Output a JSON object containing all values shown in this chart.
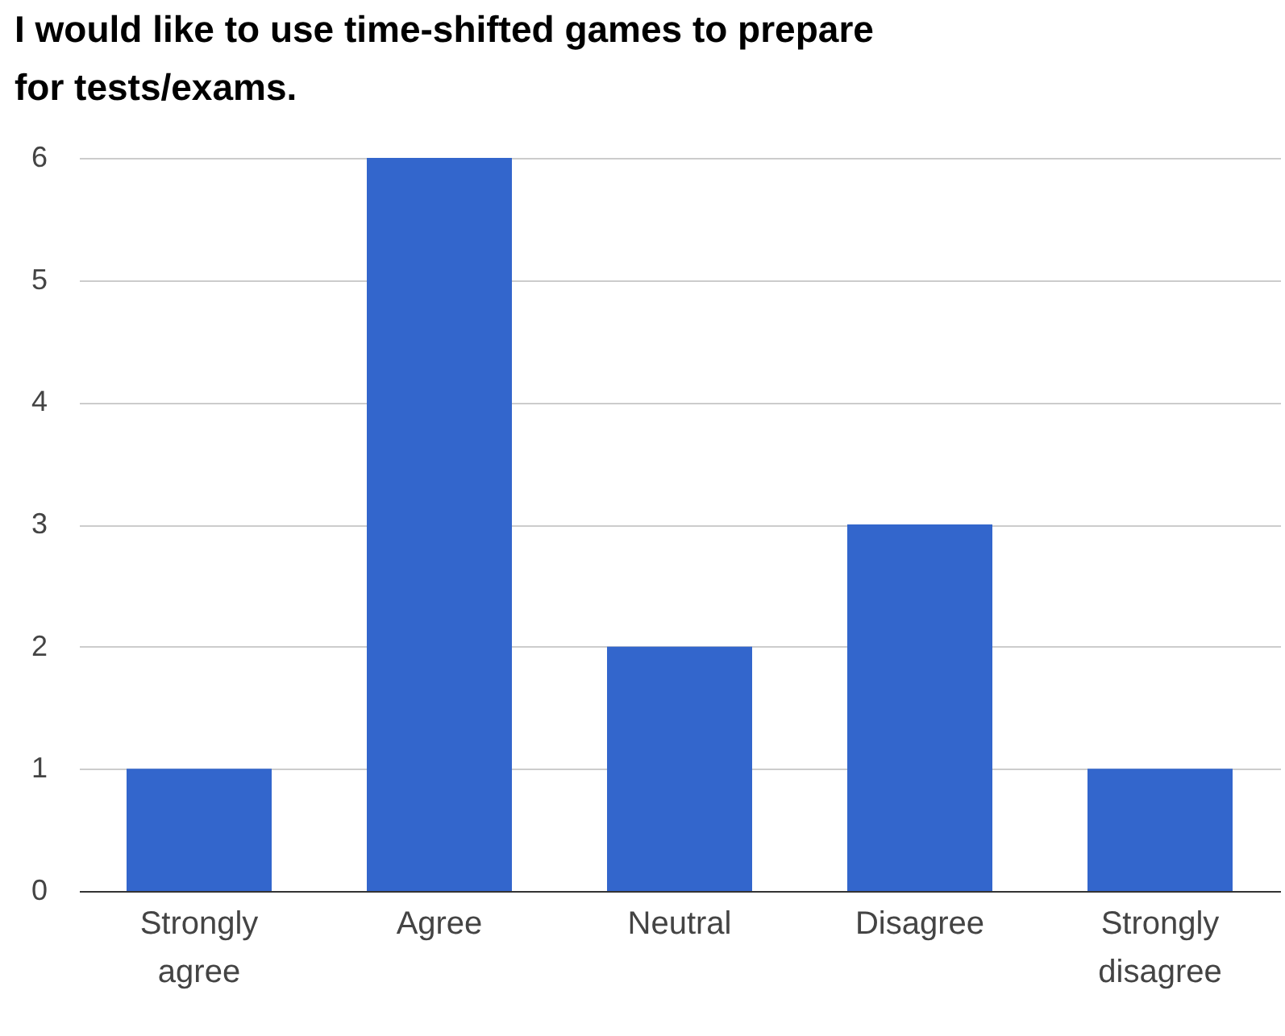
{
  "chart_data": {
    "type": "bar",
    "title": "I would like to use time-shifted games to prepare for tests/exams.",
    "categories": [
      "Strongly agree",
      "Agree",
      "Neutral",
      "Disagree",
      "Strongly disagree"
    ],
    "values": [
      1,
      6,
      2,
      3,
      1
    ],
    "color": "#3366cc",
    "ylim": [
      0,
      6
    ],
    "yticks": [
      0,
      1,
      2,
      3,
      4,
      5,
      6
    ],
    "grid": "y"
  }
}
